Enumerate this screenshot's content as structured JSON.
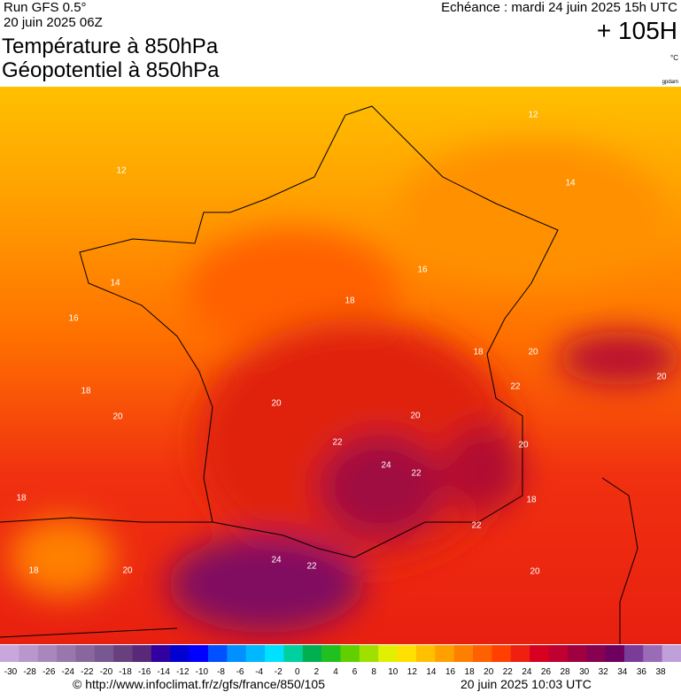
{
  "header": {
    "run": "Run GFS 0.5°",
    "run_date": "20 juin 2025 06Z",
    "echeance": "Echéance : mardi 24 juin 2025 15h UTC",
    "lead": "+ 105H",
    "title_1": "Température à 850hPa",
    "title_2": "Géopotentiel à 850hPa",
    "unit": "°C",
    "gp_unit": "gpdam"
  },
  "map": {
    "contour_labels": [
      "12",
      "12",
      "14",
      "14",
      "16",
      "16",
      "18",
      "18",
      "18",
      "18",
      "18",
      "20",
      "20",
      "20",
      "20",
      "20",
      "20",
      "20",
      "20",
      "22",
      "22",
      "22",
      "22",
      "22",
      "24",
      "24",
      "18"
    ]
  },
  "scale": {
    "labels": [
      -30,
      -28,
      -26,
      -24,
      -22,
      -20,
      -18,
      -16,
      -14,
      -12,
      -10,
      -8,
      -6,
      -4,
      -2,
      0,
      2,
      4,
      6,
      8,
      10,
      12,
      14,
      16,
      18,
      20,
      22,
      24,
      26,
      28,
      30,
      32,
      34,
      36,
      38
    ],
    "colors": [
      "#c8a8dc",
      "#b898cc",
      "#a888bc",
      "#9878ac",
      "#88689c",
      "#785890",
      "#684080",
      "#5a2878",
      "#3000a0",
      "#0000d0",
      "#0000ff",
      "#0050ff",
      "#0090ff",
      "#00b8ff",
      "#00e0ff",
      "#00d0a0",
      "#00b050",
      "#20c020",
      "#60d000",
      "#a0e000",
      "#e0f000",
      "#ffe000",
      "#ffc000",
      "#ffa000",
      "#ff8000",
      "#ff6000",
      "#ff4000",
      "#f02010",
      "#d80020",
      "#c00030",
      "#a00040",
      "#880050",
      "#700060",
      "#7a3c98",
      "#9a6cb8",
      "#c0a0d8"
    ]
  },
  "footer": {
    "url": "© http://www.infoclimat.fr/z/gfs/france/850/105",
    "timestamp": "20 juin 2025 10:03 UTC"
  }
}
